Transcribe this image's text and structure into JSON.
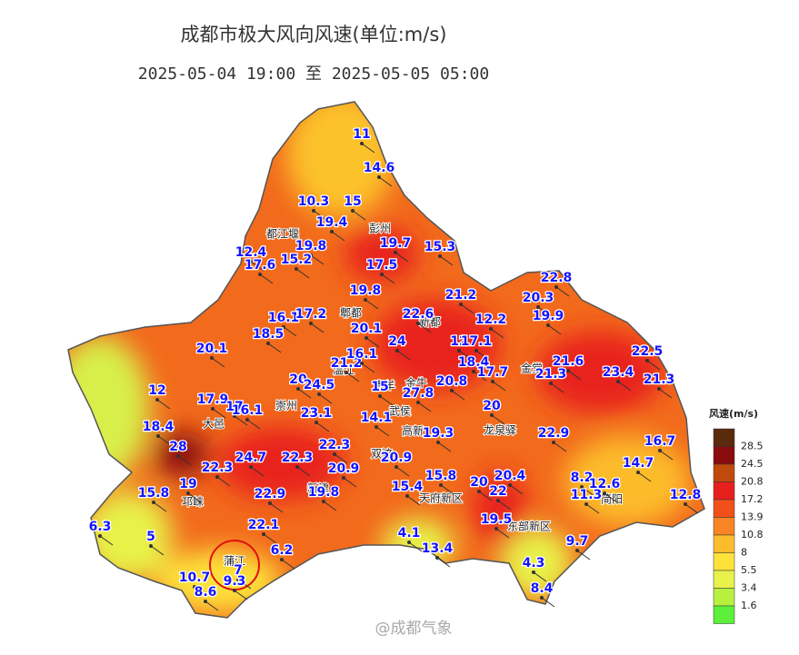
{
  "title": "成都市极大风向风速(单位:m/s)",
  "subtitle": "2025-05-04 19:00 至 2025-05-05 05:00",
  "legend": {
    "title": "风速(m/s)",
    "labels": [
      28.5,
      24.5,
      20.8,
      17.2,
      13.9,
      10.8,
      8,
      5.5,
      3.4,
      1.6
    ],
    "colors": [
      "#5a2a0c",
      "#8a0c0c",
      "#c04a0c",
      "#e8201c",
      "#f2501a",
      "#f88424",
      "#fcbc2c",
      "#fde23a",
      "#e8f24a",
      "#b8f040",
      "#5cf03c"
    ]
  },
  "districts": [
    "都江堰",
    "彭州",
    "郫都",
    "新都",
    "温江",
    "青羊",
    "金牛",
    "崇州",
    "大邑",
    "武侯",
    "双流",
    "高新",
    "龙泉驿",
    "新津",
    "邛崃",
    "天府新区",
    "东部新区",
    "蒲江",
    "简阳",
    "金堂"
  ],
  "stations": [
    11,
    14.6,
    10.3,
    15,
    19.4,
    19.8,
    19.7,
    15.3,
    12.4,
    17.6,
    15.2,
    17.5,
    19.8,
    21.2,
    22.8,
    20.3,
    19.9,
    16.1,
    17.2,
    20.1,
    22.6,
    12.2,
    18.5,
    20.1,
    24,
    12,
    17.1,
    22.5,
    21.2,
    16.1,
    18.4,
    17.7,
    21.6,
    21.3,
    23.4,
    21.3,
    12,
    20,
    24.5,
    15,
    20.8,
    27.8,
    17.9,
    17,
    16.1,
    23.1,
    14.1,
    20,
    19.3,
    18.4,
    22.9,
    16.7,
    28,
    24.7,
    22.3,
    22.3,
    20.9,
    20.9,
    14.7,
    22.3,
    19,
    15.8,
    20,
    20.4,
    8.2,
    12.6,
    15.8,
    22.9,
    19.8,
    15.4,
    22,
    11.3,
    12.8,
    6.3,
    22.1,
    19.5,
    5,
    4.1,
    6.2,
    13.4,
    9.7,
    4.3,
    10.7,
    7,
    9.3,
    8.6,
    8.4
  ],
  "watermark": "@成都气象"
}
